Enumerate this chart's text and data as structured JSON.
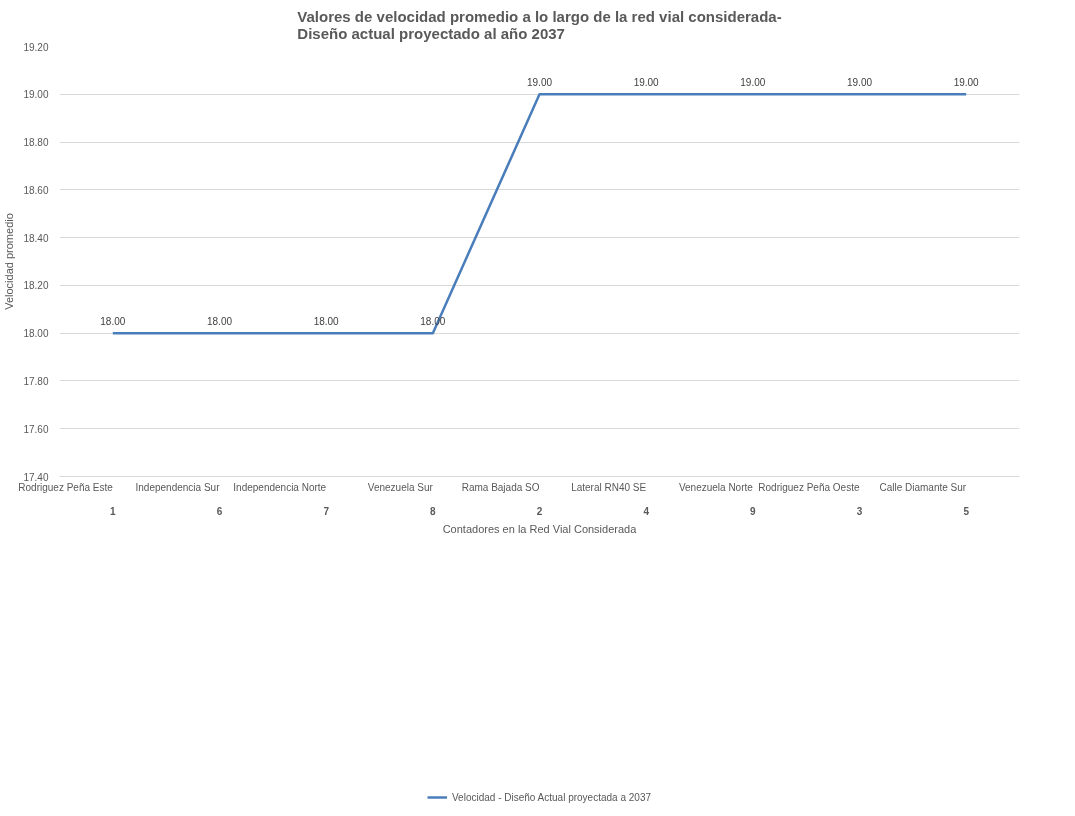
{
  "chart_data": {
    "type": "line",
    "title": "Valores de velocidad promedio a lo largo de la red vial considerada-\nDiseño actual proyectado al año 2037",
    "xlabel": "Contadores en la Red Vial Considerada",
    "ylabel": "Velocidad promedio",
    "categories": [
      "Rodriguez Peña Este\n1",
      "Independencia Sur\n6",
      "Independencia Norte\n7",
      "Venezuela Sur\n8",
      "Rama Bajada SO\n2",
      "Lateral RN40 SE\n4",
      "Venezuela Norte\n9",
      "Rodriguez Peña Oeste\n3",
      "Calle Diamante Sur\n5"
    ],
    "series": [
      {
        "name": "Velocidad - Diseño Actual proyectada a 2037",
        "color": "#4a7ebb",
        "values": [
          18,
          18,
          18,
          18,
          19,
          19,
          19,
          19,
          19
        ],
        "value_labels": [
          "18.00",
          "18.00",
          "18.00",
          "18.00",
          "19.00",
          "19.00",
          "19.00",
          "19.00",
          "19.00"
        ]
      }
    ],
    "ylim": [
      17.4,
      19.2
    ],
    "yticks": [
      {
        "value": 17.4,
        "label": "17.40"
      },
      {
        "value": 17.6,
        "label": "17.60"
      },
      {
        "value": 17.8,
        "label": "17.80"
      },
      {
        "value": 18.0,
        "label": "18.00"
      },
      {
        "value": 18.2,
        "label": "18.20"
      },
      {
        "value": 18.4,
        "label": "18.40"
      },
      {
        "value": 18.6,
        "label": "18.60"
      },
      {
        "value": 18.8,
        "label": "18.80"
      },
      {
        "value": 19.0,
        "label": "19.00"
      },
      {
        "value": 19.2,
        "label": "19.20"
      }
    ],
    "grid": "y",
    "legend": "bottom",
    "marker": "none",
    "line_style": "solid"
  }
}
